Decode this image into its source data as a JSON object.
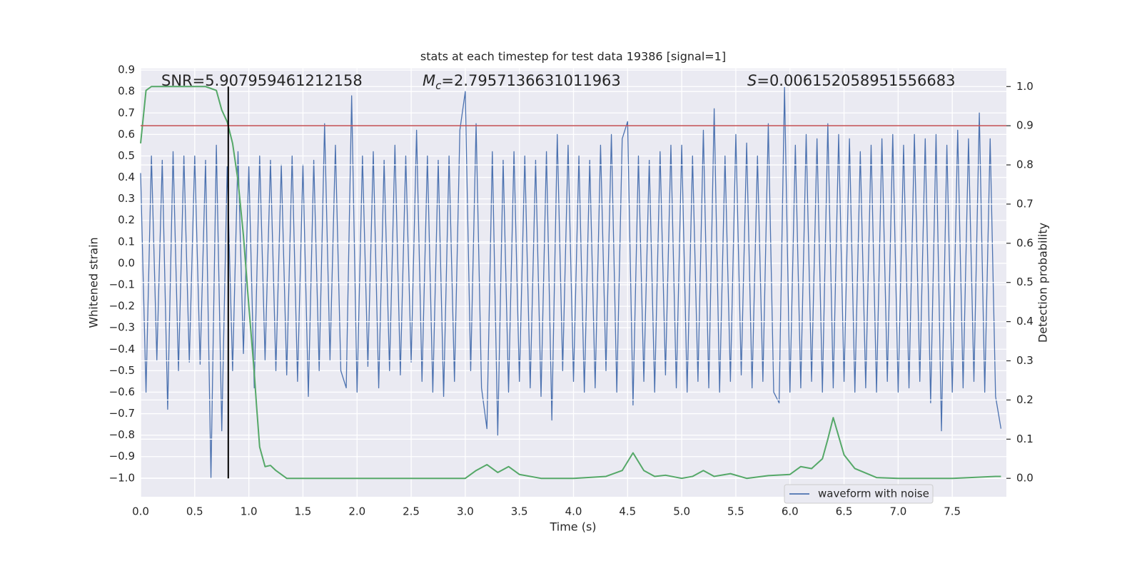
{
  "chart_data": {
    "type": "line",
    "title": "stats at each timestep for test data 19386 [signal=1]",
    "x_label": "Time (s)",
    "y_label": "Whitened strain",
    "y2_label": "Detection probability",
    "xlim": [
      0,
      8
    ],
    "ylim": [
      -1.087,
      0.907
    ],
    "y2lim": [
      -0.047,
      1.046
    ],
    "grid": true,
    "legend": "best",
    "xticks": [
      {
        "value": 0,
        "label": "0.0"
      },
      0.5,
      {
        "value": 1,
        "label": "1.0"
      },
      1.5,
      {
        "value": 2,
        "label": "2.0"
      },
      2.5,
      {
        "value": 3,
        "label": "3.0"
      },
      3.5,
      {
        "value": 4,
        "label": "4.0"
      },
      4.5,
      {
        "value": 5,
        "label": "5.0"
      },
      5.5,
      {
        "value": 6,
        "label": "6.0"
      },
      6.5,
      {
        "value": 7,
        "label": "7.0"
      },
      7.5
    ],
    "yticks": [
      0.9,
      0.8,
      0.7,
      0.6,
      0.5,
      0.4,
      0.3,
      0.2,
      0.1,
      {
        "value": 0,
        "label": "0.0"
      },
      {
        "value": -0.1,
        "label": "−0.1"
      },
      {
        "value": -0.2,
        "label": "−0.2"
      },
      {
        "value": -0.3,
        "label": "−0.3"
      },
      {
        "value": -0.4,
        "label": "−0.4"
      },
      {
        "value": -0.5,
        "label": "−0.5"
      },
      {
        "value": -0.6,
        "label": "−0.6"
      },
      {
        "value": -0.7,
        "label": "−0.7"
      },
      {
        "value": -0.8,
        "label": "−0.8"
      },
      {
        "value": -0.9,
        "label": "−0.9"
      },
      {
        "value": -1,
        "label": "−1.0"
      }
    ],
    "y2ticks": [
      {
        "value": 1,
        "label": "1.0"
      },
      0.9,
      0.8,
      0.7,
      0.6,
      0.5,
      0.4,
      0.3,
      0.2,
      0.1,
      {
        "value": 0,
        "label": "0.0"
      }
    ],
    "series": [
      {
        "name": "waveform with noise",
        "color": "#4c72b0",
        "x": [
          0,
          0.05,
          0.1,
          0.15,
          0.2,
          0.25,
          0.3,
          0.35,
          0.4,
          0.45,
          0.5,
          0.55,
          0.6,
          0.65,
          0.7,
          0.75,
          0.8,
          0.85,
          0.9,
          0.95,
          1,
          1.05,
          1.1,
          1.15,
          1.2,
          1.25,
          1.3,
          1.35,
          1.4,
          1.45,
          1.5,
          1.55,
          1.6,
          1.65,
          1.7,
          1.75,
          1.8,
          1.85,
          1.9,
          1.95,
          2,
          2.05,
          2.1,
          2.15,
          2.2,
          2.25,
          2.3,
          2.35,
          2.4,
          2.45,
          2.5,
          2.55,
          2.6,
          2.65,
          2.7,
          2.75,
          2.8,
          2.85,
          2.9,
          2.95,
          3,
          3.05,
          3.1,
          3.15,
          3.2,
          3.25,
          3.3,
          3.35,
          3.4,
          3.45,
          3.5,
          3.55,
          3.6,
          3.65,
          3.7,
          3.75,
          3.8,
          3.85,
          3.9,
          3.95,
          4,
          4.05,
          4.1,
          4.15,
          4.2,
          4.25,
          4.3,
          4.35,
          4.4,
          4.45,
          4.5,
          4.55,
          4.6,
          4.65,
          4.7,
          4.75,
          4.8,
          4.85,
          4.9,
          4.95,
          5,
          5.05,
          5.1,
          5.15,
          5.2,
          5.25,
          5.3,
          5.35,
          5.4,
          5.45,
          5.5,
          5.55,
          5.6,
          5.65,
          5.7,
          5.75,
          5.8,
          5.85,
          5.9,
          5.95,
          6,
          6.05,
          6.1,
          6.15,
          6.2,
          6.25,
          6.3,
          6.35,
          6.4,
          6.45,
          6.5,
          6.55,
          6.6,
          6.65,
          6.7,
          6.75,
          6.8,
          6.85,
          6.9,
          6.95,
          7,
          7.05,
          7.1,
          7.15,
          7.2,
          7.25,
          7.3,
          7.35,
          7.4,
          7.45,
          7.5,
          7.55,
          7.6,
          7.65,
          7.7,
          7.75,
          7.8,
          7.85,
          7.9,
          7.95
        ],
        "values": [
          0.42,
          -0.6,
          0.5,
          -0.45,
          0.48,
          -0.68,
          0.52,
          -0.5,
          0.5,
          -0.46,
          0.5,
          -0.47,
          0.48,
          -1.0,
          0.55,
          -0.78,
          0.45,
          -0.5,
          0.52,
          -0.42,
          0.45,
          -0.58,
          0.5,
          -0.45,
          0.48,
          -0.5,
          0.46,
          -0.52,
          0.5,
          -0.55,
          0.46,
          -0.62,
          0.48,
          -0.5,
          0.65,
          -0.45,
          0.55,
          -0.5,
          -0.58,
          0.78,
          -0.6,
          0.5,
          -0.48,
          0.52,
          -0.58,
          0.48,
          -0.5,
          0.55,
          -0.52,
          0.5,
          -0.46,
          0.62,
          -0.55,
          0.5,
          -0.6,
          0.48,
          -0.62,
          0.5,
          -0.55,
          0.62,
          0.8,
          -0.5,
          0.65,
          -0.58,
          -0.77,
          0.52,
          -0.8,
          0.48,
          -0.6,
          0.52,
          -0.55,
          0.5,
          -0.58,
          0.48,
          -0.62,
          0.52,
          -0.73,
          0.6,
          -0.5,
          0.55,
          -0.55,
          0.5,
          -0.6,
          0.48,
          -0.58,
          0.55,
          -0.5,
          0.6,
          -0.6,
          0.58,
          0.66,
          -0.66,
          0.5,
          -0.55,
          0.48,
          -0.6,
          0.52,
          -0.52,
          0.55,
          -0.58,
          0.55,
          -0.6,
          0.5,
          -0.55,
          0.62,
          -0.58,
          0.72,
          -0.6,
          0.5,
          -0.55,
          0.6,
          -0.52,
          0.56,
          -0.58,
          0.5,
          -0.55,
          0.65,
          -0.6,
          -0.65,
          0.82,
          -0.6,
          0.55,
          -0.58,
          0.6,
          -0.55,
          0.58,
          -0.6,
          0.65,
          -0.58,
          0.6,
          -0.55,
          0.58,
          -0.6,
          0.52,
          -0.58,
          0.55,
          -0.6,
          0.58,
          -0.55,
          0.6,
          -0.6,
          0.55,
          -0.58,
          0.6,
          -0.55,
          0.58,
          -0.65,
          0.6,
          -0.78,
          0.55,
          -0.6,
          0.62,
          -0.58,
          0.58,
          -0.55,
          0.7,
          -0.6,
          0.58,
          -0.62,
          -0.77
        ]
      },
      {
        "color": "#55a868",
        "axis": "y2",
        "x": [
          0,
          0.05,
          0.1,
          0.2,
          0.3,
          0.4,
          0.5,
          0.6,
          0.7,
          0.75,
          0.8,
          0.85,
          0.9,
          0.95,
          1,
          1.05,
          1.07,
          1.1,
          1.15,
          1.2,
          1.25,
          1.35,
          1.5,
          1.75,
          2,
          2.5,
          3,
          3.1,
          3.2,
          3.3,
          3.4,
          3.5,
          3.7,
          4,
          4.3,
          4.45,
          4.55,
          4.65,
          4.75,
          4.85,
          5,
          5.1,
          5.2,
          5.3,
          5.45,
          5.6,
          5.8,
          6,
          6.1,
          6.2,
          6.3,
          6.35,
          6.4,
          6.5,
          6.6,
          6.8,
          7,
          7.5,
          7.9,
          7.95
        ],
        "values": [
          0.855,
          0.99,
          1.0,
          1.0,
          1.0,
          1.0,
          1.0,
          1.0,
          0.99,
          0.94,
          0.91,
          0.855,
          0.76,
          0.62,
          0.44,
          0.27,
          0.19,
          0.08,
          0.03,
          0.033,
          0.02,
          0.0,
          0.0,
          0.0,
          0.0,
          0.0,
          0.0,
          0.02,
          0.035,
          0.015,
          0.03,
          0.01,
          0.0,
          0.0,
          0.005,
          0.02,
          0.065,
          0.02,
          0.005,
          0.008,
          0.0,
          0.005,
          0.02,
          0.005,
          0.012,
          0.0,
          0.007,
          0.01,
          0.03,
          0.025,
          0.05,
          0.1,
          0.155,
          0.06,
          0.025,
          0.002,
          0.0,
          0.0,
          0.005,
          0.005
        ]
      }
    ],
    "hlines": [
      {
        "axis": "y2",
        "value": 0.9,
        "color": "#c44e52"
      }
    ],
    "vlines": [
      {
        "axis": "y2",
        "x": 0.81,
        "range": [
          0,
          1
        ],
        "color": "#000000"
      }
    ],
    "annotations": [
      {
        "text": "SNR=5.907959461212158"
      },
      {
        "symbol": "M",
        "subscript": "c",
        "text": "=2.7957136631011963"
      },
      {
        "symbol": "S",
        "text": "=0.006152058951556683"
      }
    ]
  }
}
